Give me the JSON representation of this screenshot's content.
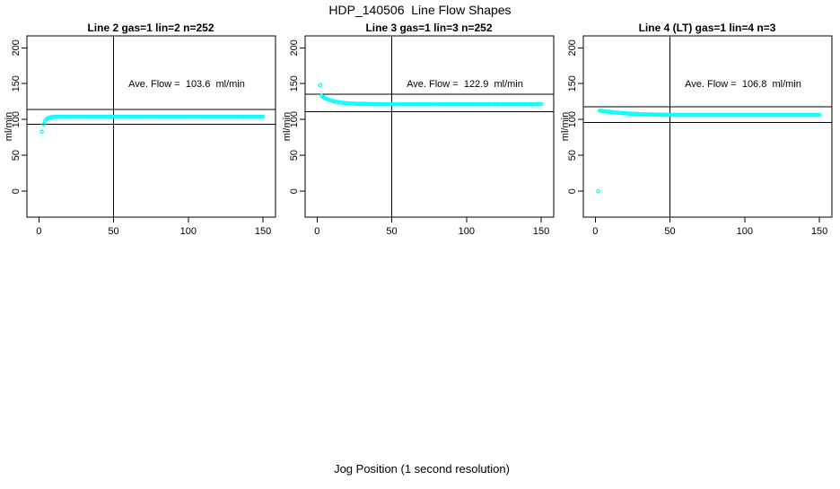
{
  "title": "HDP_140506  Line Flow Shapes",
  "xlabel": "Jog Position (1 second resolution)",
  "colors": {
    "points": "#00ffff",
    "axis": "#000000",
    "background": "#ffffff"
  },
  "x_values": [
    2,
    3,
    4,
    5,
    6,
    7,
    8,
    9,
    10,
    11,
    12,
    13,
    14,
    15,
    16,
    17,
    18,
    19,
    20,
    21,
    22,
    23,
    24,
    25,
    26,
    27,
    28,
    29,
    30,
    31,
    32,
    33,
    34,
    35,
    36,
    37,
    38,
    39,
    40,
    41,
    42,
    43,
    44,
    45,
    46,
    47,
    48,
    49,
    50,
    51,
    52,
    53,
    54,
    55,
    56,
    57,
    58,
    59,
    60,
    61,
    62,
    63,
    64,
    65,
    66,
    67,
    68,
    69,
    70,
    71,
    72,
    73,
    74,
    75,
    76,
    77,
    78,
    79,
    80,
    81,
    82,
    83,
    84,
    85,
    86,
    87,
    88,
    89,
    90,
    91,
    92,
    93,
    94,
    95,
    96,
    97,
    98,
    99,
    100,
    101,
    102,
    103,
    104,
    105,
    106,
    107,
    108,
    109,
    110,
    111,
    112,
    113,
    114,
    115,
    116,
    117,
    118,
    119,
    120,
    121,
    122,
    123,
    124,
    125,
    126,
    127,
    128,
    129,
    130,
    131,
    132,
    133,
    134,
    135,
    136,
    137,
    138,
    139,
    140,
    141,
    142,
    143,
    144,
    145,
    146,
    147,
    148,
    149,
    150
  ],
  "chart_data": [
    {
      "type": "scatter",
      "title": "Line 2 gas=1 lin=2 n=252",
      "ylabel": "ml/min",
      "annotation": "Ave. Flow =  103.6  ml/min",
      "ave_flow": 103.6,
      "n": 252,
      "xlim": [
        -8,
        158.4
      ],
      "ylim": [
        -36.1,
        216.6
      ],
      "x_ticks": [
        0,
        50,
        100,
        150
      ],
      "y_ticks": [
        0,
        50,
        100,
        150,
        200
      ],
      "vlines": [
        50
      ],
      "ref_lines": [
        114.0,
        93.2
      ],
      "y_values": [
        83,
        93,
        97.7,
        100.3,
        101.8,
        102.7,
        103.2,
        103.4,
        103.6,
        103.7,
        103.8,
        103.8,
        103.8,
        103.8,
        103.8,
        103.8,
        103.8,
        103.8,
        103.8,
        103.8,
        103.8,
        103.8,
        103.8,
        103.8,
        103.8,
        103.8,
        103.8,
        103.8,
        103.8,
        103.8,
        103.8,
        103.8,
        103.8,
        103.8,
        103.8,
        103.8,
        103.8,
        103.8,
        103.8,
        103.8,
        103.8,
        103.8,
        103.8,
        103.8,
        103.8,
        103.8,
        103.8,
        103.8,
        103.8,
        103.8,
        103.8,
        103.8,
        103.8,
        103.8,
        103.8,
        103.8,
        103.8,
        103.8,
        103.8,
        103.8,
        103.8,
        103.8,
        103.8,
        103.8,
        103.8,
        103.8,
        103.8,
        103.8,
        103.8,
        103.8,
        103.8,
        103.8,
        103.8,
        103.8,
        103.8,
        103.8,
        103.8,
        103.8,
        103.8,
        103.8,
        103.8,
        103.8,
        103.8,
        103.8,
        103.8,
        103.8,
        103.8,
        103.8,
        103.8,
        103.8,
        103.8,
        103.8,
        103.8,
        103.8,
        103.8,
        103.8,
        103.8,
        103.8,
        103.8,
        103.8,
        103.8,
        103.8,
        103.8,
        103.8,
        103.8,
        103.8,
        103.8,
        103.8,
        103.8,
        103.8,
        103.8,
        103.8,
        103.8,
        103.8,
        103.8,
        103.8,
        103.8,
        103.8,
        103.8,
        103.8,
        103.8,
        103.8,
        103.8,
        103.8,
        103.8,
        103.8,
        103.8,
        103.8,
        103.8,
        103.8,
        103.8,
        103.8,
        103.8,
        103.8,
        103.8,
        103.8,
        103.8,
        103.8,
        103.8,
        103.8,
        103.8,
        103.8,
        103.8,
        103.8,
        103.8,
        103.8,
        103.8,
        103.8,
        103.8
      ]
    },
    {
      "type": "scatter",
      "title": "Line 3 gas=1 lin=3 n=252",
      "ylabel": "ml/min",
      "annotation": "Ave. Flow =  122.9  ml/min",
      "ave_flow": 122.9,
      "n": 252,
      "xlim": [
        -8,
        158.4
      ],
      "ylim": [
        -36.1,
        216.6
      ],
      "x_ticks": [
        0,
        50,
        100,
        150
      ],
      "y_ticks": [
        0,
        50,
        100,
        150,
        200
      ],
      "vlines": [
        50
      ],
      "ref_lines": [
        135.2,
        110.6
      ],
      "y_values": [
        148,
        133,
        131.6,
        130.4,
        129.3,
        128.4,
        127.6,
        126.8,
        126.2,
        125.6,
        125.1,
        124.7,
        124.3,
        123.9,
        123.6,
        123.3,
        123.1,
        122.9,
        122.7,
        122.5,
        122.4,
        122.3,
        122.2,
        122.1,
        122.0,
        121.9,
        121.9,
        121.8,
        121.8,
        121.7,
        121.7,
        121.6,
        121.6,
        121.5,
        121.5,
        121.5,
        121.4,
        121.4,
        121.4,
        121.4,
        121.3,
        121.3,
        121.3,
        121.3,
        121.3,
        121.3,
        121.3,
        121.3,
        121.3,
        121.3,
        121.3,
        121.3,
        121.3,
        121.3,
        121.3,
        121.3,
        121.3,
        121.3,
        121.3,
        121.3,
        121.3,
        121.3,
        121.3,
        121.3,
        121.3,
        121.3,
        121.3,
        121.3,
        121.3,
        121.3,
        121.3,
        121.3,
        121.3,
        121.3,
        121.3,
        121.3,
        121.3,
        121.3,
        121.3,
        121.3,
        121.3,
        121.3,
        121.3,
        121.3,
        121.3,
        121.3,
        121.3,
        121.3,
        121.3,
        121.3,
        121.3,
        121.3,
        121.3,
        121.3,
        121.3,
        121.3,
        121.3,
        121.3,
        121.3,
        121.3,
        121.3,
        121.3,
        121.3,
        121.3,
        121.3,
        121.3,
        121.3,
        121.3,
        121.3,
        121.3,
        121.3,
        121.3,
        121.3,
        121.3,
        121.3,
        121.3,
        121.3,
        121.3,
        121.3,
        121.3,
        121.3,
        121.3,
        121.3,
        121.3,
        121.3,
        121.3,
        121.3,
        121.3,
        121.3,
        121.3,
        121.3,
        121.3,
        121.3,
        121.3,
        121.3,
        121.3,
        121.3,
        121.3,
        121.3,
        121.3,
        121.3,
        121.3,
        121.3,
        121.3,
        121.3,
        121.3,
        121.3,
        121.3,
        121.3
      ]
    },
    {
      "type": "scatter",
      "title": "Line 4 (LT) gas=1 lin=4 n=3",
      "ylabel": "ml/min",
      "annotation": "Ave. Flow =  106.8  ml/min",
      "ave_flow": 106.8,
      "n": 3,
      "xlim": [
        -8,
        158.4
      ],
      "ylim": [
        -36.1,
        216.6
      ],
      "x_ticks": [
        0,
        50,
        100,
        150
      ],
      "y_ticks": [
        0,
        50,
        100,
        150,
        200
      ],
      "vlines": [
        50
      ],
      "ref_lines": [
        117.5,
        96.1
      ],
      "y_values": [
        0,
        112.4,
        112.1,
        111.8,
        111.5,
        111.3,
        111.0,
        110.8,
        110.5,
        110.3,
        110.1,
        109.9,
        109.7,
        109.5,
        109.3,
        109.1,
        109.0,
        108.8,
        108.7,
        108.5,
        108.4,
        108.2,
        108.1,
        108.0,
        107.9,
        107.8,
        107.7,
        107.6,
        107.5,
        107.4,
        107.3,
        107.3,
        107.2,
        107.1,
        107.1,
        107.0,
        107.0,
        106.9,
        106.9,
        106.8,
        106.8,
        106.7,
        106.7,
        106.7,
        106.6,
        106.6,
        106.6,
        106.5,
        106.5,
        106.5,
        106.5,
        106.5,
        106.5,
        106.5,
        106.5,
        106.5,
        106.5,
        106.5,
        106.5,
        106.5,
        106.5,
        106.5,
        106.5,
        106.5,
        106.5,
        106.5,
        106.5,
        106.5,
        106.5,
        106.5,
        106.5,
        106.5,
        106.5,
        106.5,
        106.5,
        106.5,
        106.5,
        106.5,
        106.5,
        106.5,
        106.5,
        106.5,
        106.5,
        106.5,
        106.5,
        106.5,
        106.5,
        106.5,
        106.5,
        106.5,
        106.5,
        106.5,
        106.5,
        106.5,
        106.5,
        106.5,
        106.5,
        106.5,
        106.5,
        106.5,
        106.5,
        106.5,
        106.5,
        106.5,
        106.5,
        106.5,
        106.5,
        106.5,
        106.5,
        106.5,
        106.5,
        106.5,
        106.5,
        106.5,
        106.5,
        106.5,
        106.5,
        106.5,
        106.5,
        106.5,
        106.5,
        106.5,
        106.5,
        106.5,
        106.5,
        106.5,
        106.5,
        106.5,
        106.5,
        106.5,
        106.5,
        106.5,
        106.5,
        106.5,
        106.5,
        106.5,
        106.5,
        106.5,
        106.5,
        106.5,
        106.5,
        106.5,
        106.5,
        106.5,
        106.5,
        106.5,
        106.5,
        106.5,
        106.5
      ]
    }
  ]
}
